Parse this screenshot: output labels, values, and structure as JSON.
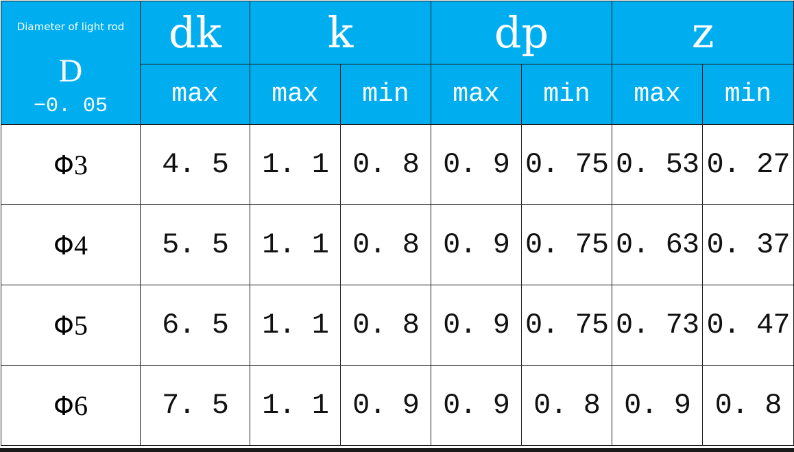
{
  "table": {
    "d_header": {
      "label": "Diameter of light rod",
      "symbol": "D",
      "tolerance": "−0. 05"
    },
    "groups": [
      "dk",
      "k",
      "dp",
      "z"
    ],
    "subheaders": [
      "max",
      "max",
      "min",
      "max",
      "min",
      "max",
      "min"
    ],
    "rows": [
      {
        "d": "Φ",
        "n": "3",
        "cells": [
          "4. 5",
          "1. 1",
          "0. 8",
          "0. 9",
          "0. 75",
          "0. 53",
          "0. 27"
        ]
      },
      {
        "d": "Φ",
        "n": "4",
        "cells": [
          "5. 5",
          "1. 1",
          "0. 8",
          "0. 9",
          "0. 75",
          "0. 63",
          "0. 37"
        ]
      },
      {
        "d": "Φ",
        "n": "5",
        "cells": [
          "6. 5",
          "1. 1",
          "0. 8",
          "0. 9",
          "0. 75",
          "0. 73",
          "0. 47"
        ]
      },
      {
        "d": "Φ",
        "n": "6",
        "cells": [
          "7. 5",
          "1. 1",
          "0. 9",
          "0. 9",
          "0. 8",
          "0. 9",
          "0. 8"
        ]
      }
    ]
  },
  "colors": {
    "header_bg": "#00aeef",
    "header_text": "#ffffff",
    "grid": "#1a1a1a"
  }
}
